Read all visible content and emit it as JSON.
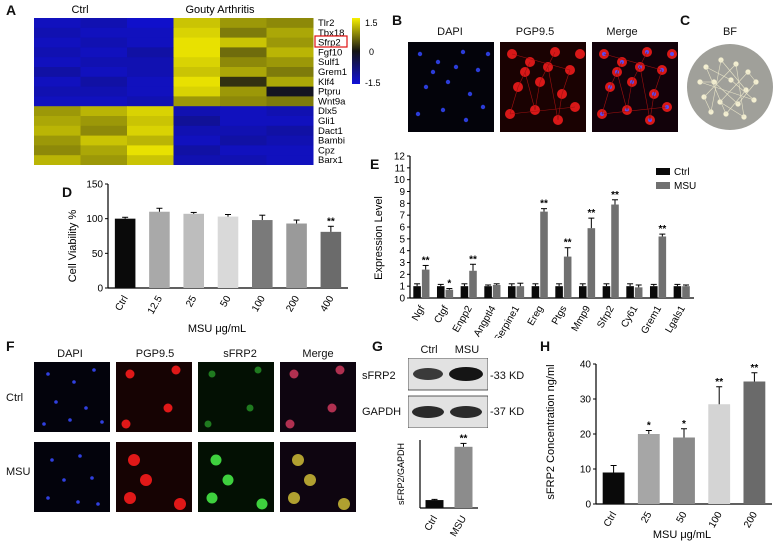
{
  "panels": {
    "A": "A",
    "B": "B",
    "C": "C",
    "D": "D",
    "E": "E",
    "F": "F",
    "G": "G",
    "H": "H"
  },
  "heatmap": {
    "groups": [
      "Ctrl",
      "Gouty Arthritis"
    ],
    "genes": [
      "Tlr2",
      "Tbx18",
      "Sfrp2",
      "Fgf10",
      "Sulf1",
      "Grem1",
      "Klf4",
      "Ptpru",
      "Wnt9a",
      "Dlx5",
      "Gli1",
      "Dact1",
      "Bambi",
      "Cpz",
      "Barx1"
    ],
    "highlight": "Sfrp2",
    "scale": [
      "1.5",
      "0",
      "-1.5"
    ],
    "colors": {
      "high": "#f7f000",
      "mid": "#141414",
      "low": "#1010d8"
    },
    "values": [
      [
        -1.3,
        -1.2,
        -1.4,
        1.2,
        0.9,
        0.8
      ],
      [
        -1.2,
        -1.3,
        -1.3,
        1.3,
        0.7,
        1.0
      ],
      [
        -1.3,
        -1.2,
        -1.3,
        1.4,
        1.2,
        0.9
      ],
      [
        -1.2,
        -1.3,
        -1.1,
        1.4,
        0.6,
        1.1
      ],
      [
        -1.3,
        -1.2,
        -1.2,
        1.3,
        0.8,
        0.9
      ],
      [
        -1.1,
        -1.3,
        -1.2,
        1.2,
        1.0,
        0.7
      ],
      [
        -1.3,
        -1.1,
        -1.3,
        1.4,
        0.2,
        1.0
      ],
      [
        -1.2,
        -1.2,
        -1.3,
        1.3,
        0.9,
        -0.1
      ],
      [
        -1.3,
        -1.3,
        -1.2,
        0.9,
        0.8,
        0.7
      ],
      [
        0.9,
        1.1,
        1.3,
        -1.2,
        -1.3,
        -1.2
      ],
      [
        1.0,
        0.9,
        1.2,
        -1.0,
        -1.3,
        -1.3
      ],
      [
        1.1,
        0.8,
        1.3,
        -1.2,
        -1.2,
        -1.1
      ],
      [
        0.9,
        1.2,
        1.1,
        -1.3,
        -1.1,
        -1.2
      ],
      [
        0.8,
        1.0,
        1.4,
        -1.1,
        -1.3,
        -1.3
      ],
      [
        1.1,
        0.9,
        1.2,
        -1.2,
        -1.2,
        -1.3
      ]
    ]
  },
  "micro_B": {
    "labels": [
      "DAPI",
      "PGP9.5",
      "Merge"
    ],
    "label_colors": [
      "#2a2ad0",
      "#d01010",
      "#111111"
    ]
  },
  "micro_C": {
    "label": "BF"
  },
  "micro_F": {
    "labels": [
      "DAPI",
      "PGP9.5",
      "sFRP2",
      "Merge"
    ],
    "label_colors": [
      "#2a2ad0",
      "#d01010",
      "#1a9a1a",
      "#111111"
    ],
    "rows": [
      "Ctrl",
      "MSU"
    ]
  },
  "blot_G": {
    "lanes": [
      "Ctrl",
      "MSU"
    ],
    "bands": [
      "sFRP2",
      "GAPDH"
    ],
    "sizes": [
      "-33 KD",
      "-37 KD"
    ]
  },
  "chart_data": [
    {
      "panel": "D",
      "type": "bar",
      "categories": [
        "Ctrl",
        "12.5",
        "25",
        "50",
        "100",
        "200",
        "400"
      ],
      "values": [
        100,
        110,
        107,
        103,
        98,
        93,
        81
      ],
      "errors": [
        2,
        5,
        2,
        3,
        7,
        5,
        8
      ],
      "stars": [
        "",
        "",
        "",
        "",
        "",
        "",
        "**"
      ],
      "colors": [
        "#0a0a0a",
        "#a9a9a9",
        "#bdbdbd",
        "#d9d9d9",
        "#7a7a7a",
        "#9a9a9a",
        "#6b6b6b"
      ],
      "xlabel": "MSU μg/mL",
      "ylabel": "Cell Viability %",
      "ylim": [
        0,
        150
      ],
      "yticks": [
        0,
        50,
        100,
        150
      ]
    },
    {
      "panel": "E",
      "type": "bar",
      "categories": [
        "Ngf",
        "Ctgf",
        "Enpp2",
        "Angptl4",
        "Serpine1",
        "Ereg",
        "Ptgs",
        "Mmp9",
        "Sfrp2",
        "Cy61",
        "Grem1",
        "Lgals1"
      ],
      "series": [
        {
          "name": "Ctrl",
          "values": [
            1,
            1,
            1,
            1,
            1,
            1,
            1,
            1,
            1,
            1,
            1,
            1
          ],
          "errors": [
            0.2,
            0.15,
            0.2,
            0.1,
            0.2,
            0.2,
            0.2,
            0.2,
            0.2,
            0.2,
            0.15,
            0.15
          ],
          "color": "#0a0a0a"
        },
        {
          "name": "MSU",
          "values": [
            2.4,
            0.7,
            2.3,
            1.1,
            1.0,
            7.3,
            3.5,
            5.9,
            7.9,
            0.9,
            5.2,
            1.0
          ],
          "errors": [
            0.35,
            0.1,
            0.55,
            0.1,
            0.25,
            0.25,
            0.75,
            0.85,
            0.4,
            0.2,
            0.2,
            0.1
          ],
          "color": "#707070"
        }
      ],
      "stars": [
        "**",
        "*",
        "**",
        "",
        "",
        "**",
        "**",
        "**",
        "**",
        "",
        "**",
        ""
      ],
      "ylabel": "Expression Level",
      "ylim": [
        0,
        12
      ],
      "yticks": [
        0,
        1,
        2,
        3,
        4,
        5,
        6,
        7,
        8,
        9,
        10,
        11,
        12
      ],
      "legend": "top-right"
    },
    {
      "panel": "G",
      "type": "bar",
      "categories": [
        "Ctrl",
        "MSU"
      ],
      "values": [
        0.35,
        2.7
      ],
      "errors": [
        0.03,
        0.15
      ],
      "stars": [
        "",
        "**"
      ],
      "colors": [
        "#0a0a0a",
        "#8c8c8c"
      ],
      "ylabel": "sFRP2/GAPDH",
      "ylim": [
        0,
        3
      ]
    },
    {
      "panel": "H",
      "type": "bar",
      "categories": [
        "Ctrl",
        "25",
        "50",
        "100",
        "200"
      ],
      "values": [
        9,
        20,
        19,
        28.5,
        35
      ],
      "errors": [
        2,
        1,
        2.5,
        5,
        2.5
      ],
      "stars": [
        "",
        "*",
        "*",
        "**",
        "**"
      ],
      "colors": [
        "#0a0a0a",
        "#a6a6a6",
        "#8a8a8a",
        "#d4d4d4",
        "#6a6a6a"
      ],
      "xlabel": "MSU μg/mL",
      "ylabel": "sFRP2 Concentration ng/ml",
      "ylim": [
        0,
        40
      ],
      "yticks": [
        0,
        10,
        20,
        30,
        40
      ]
    }
  ]
}
